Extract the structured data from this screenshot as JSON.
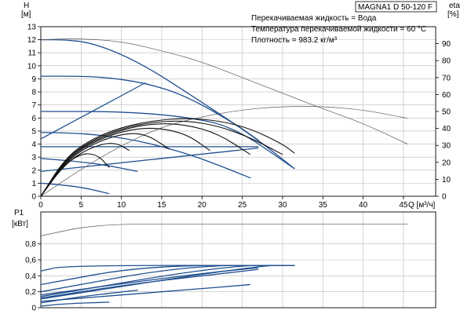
{
  "title": "MAGNA1 D 50-120 F",
  "info": [
    "Перекачиваемая жидкость = Вода",
    "Температура перекачиваемой жидкости = 60 °C",
    "Плотность = 983.2 кг/м³"
  ],
  "colors": {
    "blue": "#1f4f8f",
    "black": "#111111",
    "grid": "#b9b9b9",
    "thin": "#555555"
  },
  "chart_data": [
    {
      "type": "line",
      "panel": "head",
      "ylabel": "H",
      "yunit": "[м]",
      "y2label": "eta",
      "y2unit": "[%]",
      "xlabel": "Q",
      "xunit": "[м³/ч]",
      "xlim": [
        0,
        49
      ],
      "ylim": [
        0,
        13
      ],
      "y2lim": [
        0,
        100
      ],
      "xticks": [
        0,
        5,
        10,
        15,
        20,
        25,
        30,
        35,
        40,
        45
      ],
      "yticks": [
        0,
        1,
        2,
        3,
        4,
        5,
        6,
        7,
        8,
        9,
        10,
        11,
        12,
        13
      ],
      "y2ticks": [
        0,
        10,
        20,
        30,
        40,
        50,
        60,
        70,
        80,
        90
      ],
      "grid": true,
      "series": [
        {
          "style": "blue",
          "x": [
            0,
            3,
            6,
            10,
            14,
            18,
            22,
            27,
            31.5
          ],
          "y": [
            12.0,
            12.0,
            11.8,
            10.9,
            9.6,
            8.0,
            6.4,
            4.3,
            2.1
          ]
        },
        {
          "style": "blue",
          "x": [
            0,
            7,
            13,
            18,
            24,
            27
          ],
          "y": [
            9.2,
            9.2,
            8.7,
            7.7,
            5.6,
            4.3
          ]
        },
        {
          "style": "blue",
          "x": [
            0,
            10,
            18,
            24,
            31.5
          ],
          "y": [
            6.5,
            6.5,
            6.1,
            5.3,
            2.1
          ]
        },
        {
          "style": "blue",
          "x": [
            0,
            6,
            12,
            18,
            22,
            26
          ],
          "y": [
            4.9,
            4.8,
            4.3,
            3.3,
            2.4,
            1.4
          ]
        },
        {
          "style": "blue",
          "x": [
            0,
            10,
            20,
            27
          ],
          "y": [
            3.8,
            3.8,
            3.8,
            3.8
          ]
        },
        {
          "style": "blue",
          "x": [
            0,
            4,
            8,
            12
          ],
          "y": [
            2.9,
            2.7,
            2.4,
            1.9
          ]
        },
        {
          "style": "blue",
          "x": [
            0,
            2,
            5,
            8.5
          ],
          "y": [
            1.0,
            0.9,
            0.7,
            0.2
          ]
        },
        {
          "style": "blue",
          "x": [
            0,
            13
          ],
          "y": [
            4.4,
            8.7
          ]
        },
        {
          "style": "blue",
          "x": [
            0,
            27
          ],
          "y": [
            1.9,
            3.7
          ]
        },
        {
          "style": "thin",
          "x": [
            0,
            4,
            10,
            16,
            20,
            25,
            30,
            35,
            40,
            45.5
          ],
          "y": [
            12.0,
            12.1,
            11.9,
            11.0,
            10.3,
            9.1,
            7.9,
            6.7,
            5.6,
            4.0
          ]
        },
        {
          "style": "thin",
          "x": [
            0,
            5,
            10,
            15,
            20,
            25,
            30,
            35,
            40,
            45.5
          ],
          "y2": [
            0,
            16,
            30,
            41,
            47,
            51,
            53,
            53,
            51,
            46
          ]
        },
        {
          "style": "black",
          "x": [
            0,
            3,
            6,
            10,
            14,
            18,
            22,
            26,
            30,
            31.5
          ],
          "y": [
            0,
            2.9,
            4.3,
            5.3,
            5.8,
            6.0,
            5.8,
            5.2,
            4.0,
            3.3
          ]
        },
        {
          "style": "black",
          "x": [
            0,
            3,
            6,
            10,
            14,
            18,
            22,
            26
          ],
          "y": [
            0,
            2.8,
            4.1,
            5.1,
            5.6,
            5.5,
            4.8,
            3.2
          ]
        },
        {
          "style": "black",
          "x": [
            0,
            3,
            6,
            10,
            14,
            18,
            21
          ],
          "y": [
            0,
            2.7,
            4.0,
            5.0,
            5.3,
            4.8,
            3.5
          ]
        },
        {
          "style": "black",
          "x": [
            0,
            3,
            6,
            10,
            13,
            16
          ],
          "y": [
            0,
            2.6,
            3.9,
            4.8,
            4.8,
            3.6
          ]
        },
        {
          "style": "black",
          "x": [
            0,
            3,
            6,
            9,
            11
          ],
          "y": [
            0,
            2.5,
            3.7,
            4.2,
            3.5
          ]
        },
        {
          "style": "black",
          "x": [
            0,
            2.5,
            5,
            7,
            8.5
          ],
          "y": [
            0,
            2.2,
            3.3,
            3.2,
            2.2
          ]
        },
        {
          "style": "black",
          "x": [
            0,
            3,
            6,
            10,
            14,
            18,
            22,
            26,
            30
          ],
          "y": [
            0,
            2.8,
            4.2,
            5.2,
            5.7,
            5.8,
            5.4,
            4.5,
            3.2
          ]
        }
      ]
    },
    {
      "type": "line",
      "panel": "power",
      "ylabel": "P1",
      "yunit": "[кВт]",
      "xlim": [
        0,
        49
      ],
      "ylim": [
        0,
        1.2
      ],
      "yticks": [
        0,
        0.2,
        0.4,
        0.6,
        0.8
      ],
      "ytick_labels": [
        "0",
        "0,2",
        "0,4",
        "0,6",
        "0,8"
      ],
      "grid": true,
      "series": [
        {
          "style": "thin",
          "x": [
            0,
            7,
            20,
            45.5
          ],
          "y": [
            0.9,
            1.05,
            1.05,
            1.05
          ]
        },
        {
          "style": "blue",
          "x": [
            0,
            3,
            31.5
          ],
          "y": [
            0.46,
            0.53,
            0.53
          ]
        },
        {
          "style": "blue",
          "x": [
            0,
            13,
            31.5
          ],
          "y": [
            0.29,
            0.53,
            0.53
          ]
        },
        {
          "style": "blue",
          "x": [
            0,
            18,
            31.5
          ],
          "y": [
            0.2,
            0.53,
            0.53
          ]
        },
        {
          "style": "blue",
          "x": [
            0,
            23,
            31.5
          ],
          "y": [
            0.14,
            0.53,
            0.53
          ]
        },
        {
          "style": "blue",
          "x": [
            0,
            27,
            31.5
          ],
          "y": [
            0.11,
            0.53,
            0.53
          ]
        },
        {
          "style": "blue",
          "x": [
            0,
            10,
            20,
            27
          ],
          "y": [
            0.12,
            0.28,
            0.4,
            0.48
          ]
        },
        {
          "style": "blue",
          "x": [
            0,
            10,
            20,
            26
          ],
          "y": [
            0.08,
            0.16,
            0.24,
            0.29
          ]
        },
        {
          "style": "blue",
          "x": [
            0,
            5,
            12
          ],
          "y": [
            0.06,
            0.14,
            0.22
          ]
        },
        {
          "style": "blue",
          "x": [
            0,
            3,
            8.5
          ],
          "y": [
            0.02,
            0.05,
            0.07
          ]
        },
        {
          "style": "blue",
          "x": [
            0,
            10,
            20,
            27
          ],
          "y": [
            0.16,
            0.3,
            0.43,
            0.5
          ]
        }
      ]
    }
  ]
}
